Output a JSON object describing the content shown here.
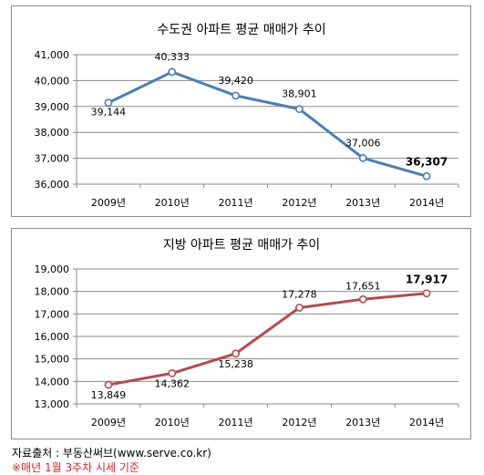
{
  "chart_data": [
    {
      "type": "line",
      "title": "수도권 아파트 평균 매매가 추이",
      "categories": [
        "2009년",
        "2010년",
        "2011년",
        "2012년",
        "2013년",
        "2014년"
      ],
      "values": [
        39144,
        40333,
        39420,
        38901,
        37006,
        36307
      ],
      "value_labels": [
        "39,144",
        "40,333",
        "39,420",
        "38,901",
        "37,006",
        "36,307"
      ],
      "y_ticks": [
        "36,000",
        "37,000",
        "38,000",
        "39,000",
        "40,000",
        "41,000"
      ],
      "ylim": [
        36000,
        41000
      ],
      "color": "#4a7fb5",
      "grid": true,
      "legend": "none"
    },
    {
      "type": "line",
      "title": "지방 아파트 평균 매매가 추이",
      "categories": [
        "2009년",
        "2010년",
        "2011년",
        "2012년",
        "2013년",
        "2014년"
      ],
      "values": [
        13849,
        14362,
        15238,
        17278,
        17651,
        17917
      ],
      "value_labels": [
        "13,849",
        "14,362",
        "15,238",
        "17,278",
        "17,651",
        "17,917"
      ],
      "y_ticks": [
        "13,000",
        "14,000",
        "15,000",
        "16,000",
        "17,000",
        "18,000",
        "19,000"
      ],
      "ylim": [
        13000,
        19000
      ],
      "color": "#b84a4a",
      "grid": true,
      "legend": "none"
    }
  ],
  "footer": {
    "source": "자료출처 : 부동산써브(www.serve.co.kr)",
    "note": "※매년 1월 3주차 시세 기준"
  }
}
